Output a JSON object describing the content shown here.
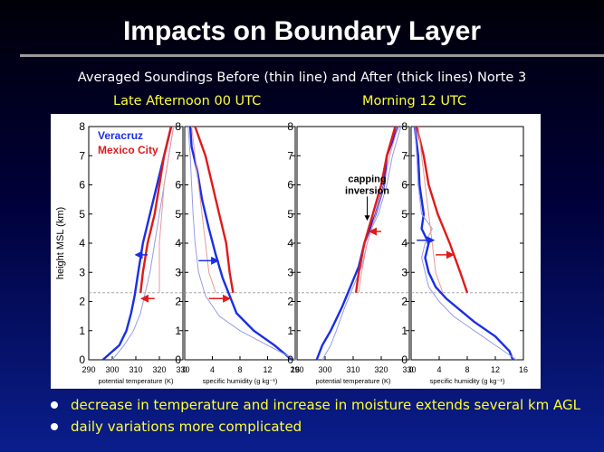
{
  "slide": {
    "title": "Impacts on Boundary Layer",
    "subtitle": "Averaged Soundings Before (thin line) and After (thick lines) Norte 3",
    "label_left": "Late Afternoon 00 UTC",
    "label_right": "Morning 12 UTC",
    "bullets": [
      "decrease in temperature and increase in moisture extends several km AGL",
      "daily variations more complicated"
    ]
  },
  "colors": {
    "veracruz": "#1a2ee6",
    "mexico_city": "#e01a1a",
    "thin": "#9a9ae6",
    "thin_red": "#e89a9a"
  },
  "chart_data": {
    "type": "line",
    "ylabel": "height MSL (km)",
    "ylim": [
      0,
      8
    ],
    "yticks": [
      "0",
      "1",
      "2",
      "3",
      "4",
      "5",
      "6",
      "7",
      "8"
    ],
    "legend": [
      "Veracruz",
      "Mexico City"
    ],
    "annotation": {
      "line1": "capping",
      "line2": "inversion"
    },
    "boundary_height": 2.3,
    "panels": [
      {
        "xlabel": "potential temperature (K)",
        "xlim": [
          290,
          330
        ],
        "xticks": [
          "290",
          "300",
          "310",
          "320",
          "330"
        ],
        "series": [
          {
            "name": "Veracruz after",
            "color": "veracruz",
            "thick": true,
            "points": [
              [
                296,
                0
              ],
              [
                303,
                0.5
              ],
              [
                306,
                1.0
              ],
              [
                308,
                1.6
              ],
              [
                309.5,
                2.2
              ],
              [
                311,
                3
              ],
              [
                313,
                4
              ],
              [
                316,
                5
              ],
              [
                319,
                6
              ],
              [
                322,
                7
              ],
              [
                325,
                8
              ]
            ]
          },
          {
            "name": "Veracruz before",
            "color": "thin",
            "thick": false,
            "points": [
              [
                300,
                0
              ],
              [
                305,
                0.5
              ],
              [
                309,
                1.0
              ],
              [
                312,
                1.6
              ],
              [
                314,
                2.3
              ],
              [
                316,
                3
              ],
              [
                318,
                4
              ],
              [
                320,
                5
              ],
              [
                322,
                6
              ],
              [
                324,
                7
              ],
              [
                326,
                8
              ]
            ]
          },
          {
            "name": "Mexico City after",
            "color": "mexico_city",
            "thick": true,
            "points": [
              [
                312,
                2.3
              ],
              [
                313,
                3
              ],
              [
                315,
                4
              ],
              [
                318,
                5
              ],
              [
                320,
                6
              ],
              [
                322,
                7
              ],
              [
                325,
                8
              ]
            ]
          },
          {
            "name": "Mexico City before",
            "color": "thin_red",
            "thick": false,
            "points": [
              [
                320,
                2.3
              ],
              [
                320,
                3
              ],
              [
                320,
                4
              ],
              [
                321,
                5
              ],
              [
                322,
                6
              ],
              [
                324,
                7
              ],
              [
                326,
                8
              ]
            ]
          }
        ],
        "arrows": [
          {
            "color": "veracruz",
            "from": [
              315,
              3.6
            ],
            "to": [
              310,
              3.6
            ]
          },
          {
            "color": "mexico_city",
            "from": [
              318,
              2.1
            ],
            "to": [
              312.5,
              2.1
            ]
          }
        ]
      },
      {
        "xlabel": "specific humidity (g kg⁻¹)",
        "xlim": [
          0,
          16
        ],
        "xticks": [
          "0",
          "4",
          "8",
          "12",
          "16"
        ],
        "series": [
          {
            "name": "Veracruz after",
            "color": "veracruz",
            "thick": true,
            "points": [
              [
                15.5,
                0
              ],
              [
                13,
                0.5
              ],
              [
                10,
                1.0
              ],
              [
                7.5,
                1.6
              ],
              [
                6.5,
                2.2
              ],
              [
                5.5,
                2.8
              ],
              [
                4.5,
                3.6
              ],
              [
                3.5,
                4.5
              ],
              [
                2.5,
                5.5
              ],
              [
                1.8,
                6.5
              ],
              [
                1,
                7.3
              ],
              [
                0.8,
                8
              ]
            ]
          },
          {
            "name": "Veracruz before",
            "color": "thin",
            "thick": false,
            "points": [
              [
                16,
                0
              ],
              [
                12,
                0.5
              ],
              [
                8,
                1.0
              ],
              [
                5,
                1.5
              ],
              [
                3,
                2.2
              ],
              [
                2,
                3
              ],
              [
                1.5,
                4
              ],
              [
                1.2,
                5
              ],
              [
                1,
                6
              ],
              [
                0.8,
                7
              ],
              [
                0.5,
                8
              ]
            ]
          },
          {
            "name": "Mexico City after",
            "color": "mexico_city",
            "thick": true,
            "points": [
              [
                7,
                2.3
              ],
              [
                6.5,
                3
              ],
              [
                6,
                4
              ],
              [
                5,
                5
              ],
              [
                4,
                6
              ],
              [
                3,
                7
              ],
              [
                1.5,
                8
              ]
            ]
          },
          {
            "name": "Mexico City before",
            "color": "thin_red",
            "thick": false,
            "points": [
              [
                4.5,
                2.3
              ],
              [
                3.5,
                3
              ],
              [
                3,
                4
              ],
              [
                2.5,
                5
              ],
              [
                2,
                6
              ],
              [
                1.5,
                7
              ],
              [
                1,
                8
              ]
            ]
          }
        ],
        "arrows": [
          {
            "color": "veracruz",
            "from": [
              2,
              3.4
            ],
            "to": [
              4.8,
              3.4
            ]
          },
          {
            "color": "mexico_city",
            "from": [
              3.5,
              2.1
            ],
            "to": [
              6.5,
              2.1
            ]
          }
        ]
      },
      {
        "xlabel": "potential temperature (K)",
        "xlim": [
          290,
          330
        ],
        "xticks": [
          "290",
          "300",
          "310",
          "320",
          "330"
        ],
        "series": [
          {
            "name": "Veracruz after",
            "color": "veracruz",
            "thick": true,
            "points": [
              [
                297,
                0
              ],
              [
                299,
                0.5
              ],
              [
                302,
                1
              ],
              [
                306,
                1.8
              ],
              [
                309,
                2.5
              ],
              [
                312,
                3.2
              ],
              [
                314,
                4
              ],
              [
                316,
                4.5
              ],
              [
                318,
                5
              ],
              [
                321,
                6
              ],
              [
                322,
                7
              ],
              [
                324,
                7.5
              ],
              [
                326,
                8
              ]
            ]
          },
          {
            "name": "Veracruz before",
            "color": "thin",
            "thick": false,
            "points": [
              [
                299,
                0
              ],
              [
                302,
                0.5
              ],
              [
                304,
                1
              ],
              [
                307,
                1.8
              ],
              [
                310,
                2.5
              ],
              [
                313,
                3.2
              ],
              [
                315,
                4
              ],
              [
                317,
                4.6
              ],
              [
                319,
                5
              ],
              [
                322,
                6
              ],
              [
                324,
                7
              ],
              [
                327,
                8
              ]
            ]
          },
          {
            "name": "Mexico City after",
            "color": "mexico_city",
            "thick": true,
            "points": [
              [
                311,
                2.3
              ],
              [
                312,
                3
              ],
              [
                314,
                4
              ],
              [
                317,
                5
              ],
              [
                320,
                6
              ],
              [
                322,
                7
              ],
              [
                325,
                8
              ]
            ]
          },
          {
            "name": "Mexico City before",
            "color": "thin_red",
            "thick": false,
            "points": [
              [
                312,
                2.3
              ],
              [
                313,
                3
              ],
              [
                315,
                4
              ],
              [
                318,
                5
              ],
              [
                321,
                6
              ],
              [
                323,
                7
              ],
              [
                326,
                8
              ]
            ]
          }
        ],
        "arrows": [
          {
            "color": "mexico_city",
            "from": [
              320,
              4.4
            ],
            "to": [
              316,
              4.4
            ]
          }
        ],
        "annotation_arrow": {
          "from": [
            315,
            5.6
          ],
          "to": [
            315,
            4.8
          ]
        }
      },
      {
        "xlabel": "specific humidity (g kg⁻¹)",
        "xlim": [
          0,
          16
        ],
        "xticks": [
          "0",
          "4",
          "8",
          "12",
          "16"
        ],
        "series": [
          {
            "name": "Veracruz after",
            "color": "veracruz",
            "thick": true,
            "points": [
              [
                14.5,
                0
              ],
              [
                14,
                0.3
              ],
              [
                12,
                0.8
              ],
              [
                9,
                1.3
              ],
              [
                7,
                1.7
              ],
              [
                5,
                2.1
              ],
              [
                3.5,
                2.5
              ],
              [
                2.5,
                3
              ],
              [
                2,
                3.5
              ],
              [
                2.5,
                4
              ],
              [
                1.5,
                4.5
              ],
              [
                1.8,
                5
              ],
              [
                1.2,
                6
              ],
              [
                1,
                7
              ],
              [
                0.5,
                8
              ]
            ]
          },
          {
            "name": "Veracruz before",
            "color": "thin",
            "thick": false,
            "points": [
              [
                15,
                0
              ],
              [
                12,
                0.5
              ],
              [
                9,
                1
              ],
              [
                6,
                1.5
              ],
              [
                4,
                2
              ],
              [
                2.5,
                2.5
              ],
              [
                2,
                3
              ],
              [
                1.5,
                3.5
              ],
              [
                2,
                4
              ],
              [
                3,
                4.5
              ],
              [
                1.5,
                5
              ],
              [
                1,
                6
              ],
              [
                0.8,
                7
              ],
              [
                0.5,
                8
              ]
            ]
          },
          {
            "name": "Mexico City after",
            "color": "mexico_city",
            "thick": true,
            "points": [
              [
                8,
                2.3
              ],
              [
                7,
                3
              ],
              [
                5.5,
                4
              ],
              [
                3.8,
                5
              ],
              [
                2.5,
                6
              ],
              [
                1.8,
                7
              ],
              [
                0.8,
                8
              ]
            ]
          },
          {
            "name": "Mexico City before",
            "color": "thin_red",
            "thick": false,
            "points": [
              [
                4.5,
                2.3
              ],
              [
                3.5,
                3
              ],
              [
                3,
                4
              ],
              [
                2.5,
                5
              ],
              [
                2,
                6
              ],
              [
                1.5,
                7
              ],
              [
                1,
                8
              ]
            ]
          }
        ],
        "arrows": [
          {
            "color": "veracruz",
            "from": [
              0.8,
              4.1
            ],
            "to": [
              3.2,
              4.1
            ]
          },
          {
            "color": "mexico_city",
            "from": [
              3.5,
              3.6
            ],
            "to": [
              6,
              3.6
            ]
          }
        ]
      }
    ]
  }
}
